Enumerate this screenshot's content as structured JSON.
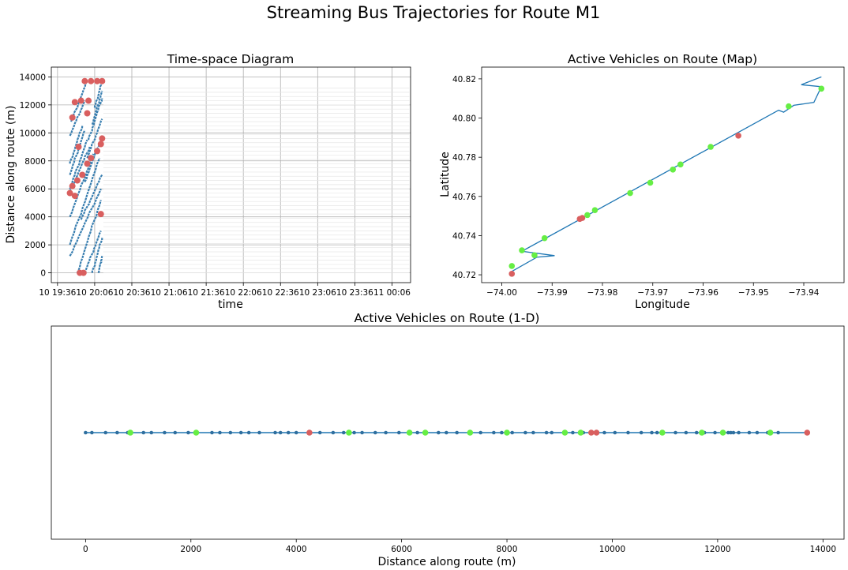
{
  "figure": {
    "title": "Streaming Bus Trajectories for Route M1"
  },
  "chart_data": [
    {
      "type": "line",
      "title": "Time-space Diagram",
      "xlabel": "time",
      "ylabel": "Distance along route (m)",
      "x_tick_labels": [
        "10 19:36",
        "10 20:06",
        "10 20:36",
        "10 21:06",
        "10 21:36",
        "10 22:06",
        "10 22:36",
        "10 23:06",
        "10 23:36",
        "11 00:06"
      ],
      "y_ticks": [
        0,
        2000,
        4000,
        6000,
        8000,
        10000,
        12000,
        14000
      ],
      "ylim": [
        -700,
        14700
      ],
      "grid": true,
      "series_colors": {
        "trajectory": "#3a7fb0",
        "bunched": "#d95f5f",
        "stop_lines": "#e6e6e6"
      },
      "trajectories": [
        {
          "x": [
            "19:46",
            "20:00"
          ],
          "y": [
            6000,
            9500
          ]
        },
        {
          "x": [
            "19:46",
            "20:02"
          ],
          "y": [
            5800,
            9000
          ]
        },
        {
          "x": [
            "19:46",
            "20:05"
          ],
          "y": [
            4000,
            8500
          ]
        },
        {
          "x": [
            "19:46",
            "20:10"
          ],
          "y": [
            2000,
            8200
          ]
        },
        {
          "x": [
            "19:46",
            "20:11"
          ],
          "y": [
            1200,
            6000
          ]
        },
        {
          "x": [
            "19:46",
            "19:58"
          ],
          "y": [
            7000,
            10200
          ]
        },
        {
          "x": [
            "19:46",
            "19:56"
          ],
          "y": [
            7800,
            10500
          ]
        },
        {
          "x": [
            "19:46",
            "19:58"
          ],
          "y": [
            9800,
            12300
          ]
        },
        {
          "x": [
            "19:47",
            "20:00"
          ],
          "y": [
            10800,
            13700
          ]
        },
        {
          "x": [
            "19:52",
            "20:11"
          ],
          "y": [
            0,
            5200
          ]
        },
        {
          "x": [
            "19:58",
            "20:11"
          ],
          "y": [
            0,
            3000
          ]
        },
        {
          "x": [
            "20:04",
            "20:12"
          ],
          "y": [
            0,
            2500
          ]
        },
        {
          "x": [
            "20:09",
            "20:12"
          ],
          "y": [
            0,
            1200
          ]
        },
        {
          "x": [
            "19:55",
            "20:12"
          ],
          "y": [
            3800,
            7000
          ]
        },
        {
          "x": [
            "19:58",
            "20:12"
          ],
          "y": [
            6500,
            9800
          ]
        },
        {
          "x": [
            "20:00",
            "20:12"
          ],
          "y": [
            8200,
            11000
          ]
        },
        {
          "x": [
            "20:01",
            "20:12"
          ],
          "y": [
            9500,
            12500
          ]
        },
        {
          "x": [
            "20:04",
            "20:12"
          ],
          "y": [
            10600,
            13000
          ]
        },
        {
          "x": [
            "20:06",
            "20:12"
          ],
          "y": [
            11800,
            13700
          ]
        }
      ],
      "bunched_points": [
        {
          "x": "19:46",
          "y": 5700
        },
        {
          "x": "19:50",
          "y": 5500
        },
        {
          "x": "19:48",
          "y": 6200
        },
        {
          "x": "19:52",
          "y": 6600
        },
        {
          "x": "19:56",
          "y": 7000
        },
        {
          "x": "20:00",
          "y": 7800
        },
        {
          "x": "20:03",
          "y": 8200
        },
        {
          "x": "20:08",
          "y": 8700
        },
        {
          "x": "20:11",
          "y": 9200
        },
        {
          "x": "20:12",
          "y": 9600
        },
        {
          "x": "20:11",
          "y": 4200
        },
        {
          "x": "19:54",
          "y": 0
        },
        {
          "x": "19:57",
          "y": 0
        },
        {
          "x": "19:53",
          "y": 9000
        },
        {
          "x": "20:00",
          "y": 11400
        },
        {
          "x": "19:48",
          "y": 11100
        },
        {
          "x": "19:50",
          "y": 12200
        },
        {
          "x": "19:55",
          "y": 12300
        },
        {
          "x": "20:01",
          "y": 12300
        },
        {
          "x": "19:58",
          "y": 13700
        },
        {
          "x": "20:03",
          "y": 13700
        },
        {
          "x": "20:08",
          "y": 13700
        },
        {
          "x": "20:12",
          "y": 13700
        }
      ]
    },
    {
      "type": "scatter",
      "title": "Active Vehicles on Route (Map)",
      "xlabel": "Longitude",
      "ylabel": "Latitude",
      "x_ticks": [
        -74.0,
        -73.99,
        -73.98,
        -73.97,
        -73.96,
        -73.95,
        -73.94
      ],
      "y_ticks": [
        40.72,
        40.74,
        40.76,
        40.78,
        40.8,
        40.82
      ],
      "xlim": [
        -74.004,
        -73.932
      ],
      "ylim": [
        40.716,
        40.826
      ],
      "route_line": {
        "color": "#1f77b4",
        "lon": [
          -73.9985,
          -73.993,
          -73.9895,
          -73.996,
          -73.945,
          -73.944,
          -73.942,
          -73.938,
          -73.9365,
          -73.9405,
          -73.9365
        ],
        "lat": [
          40.721,
          40.729,
          40.7298,
          40.732,
          40.804,
          40.803,
          40.8065,
          40.808,
          40.816,
          40.817,
          40.821
        ]
      },
      "on_time_color": "#66ee44",
      "bunched_color": "#d95f5f",
      "on_time": [
        {
          "lon": -73.998,
          "lat": 40.7245
        },
        {
          "lon": -73.996,
          "lat": 40.7325
        },
        {
          "lon": -73.9935,
          "lat": 40.73
        },
        {
          "lon": -73.9915,
          "lat": 40.7387
        },
        {
          "lon": -73.983,
          "lat": 40.7505
        },
        {
          "lon": -73.9815,
          "lat": 40.753
        },
        {
          "lon": -73.9745,
          "lat": 40.7617
        },
        {
          "lon": -73.9705,
          "lat": 40.767
        },
        {
          "lon": -73.966,
          "lat": 40.7737
        },
        {
          "lon": -73.9645,
          "lat": 40.7763
        },
        {
          "lon": -73.9585,
          "lat": 40.7853
        },
        {
          "lon": -73.943,
          "lat": 40.806
        },
        {
          "lon": -73.9365,
          "lat": 40.815
        }
      ],
      "bunched": [
        {
          "lon": -73.998,
          "lat": 40.7205
        },
        {
          "lon": -73.9845,
          "lat": 40.7485
        },
        {
          "lon": -73.984,
          "lat": 40.749
        },
        {
          "lon": -73.953,
          "lat": 40.791
        }
      ]
    },
    {
      "type": "scatter",
      "title": "Active Vehicles on Route (1-D)",
      "xlabel": "Distance along route (m)",
      "x_ticks": [
        0,
        2000,
        4000,
        6000,
        8000,
        10000,
        12000,
        14000
      ],
      "xlim": [
        -650,
        14400
      ],
      "line_color": "#1f77b4",
      "stop_positions": [
        0,
        120,
        380,
        600,
        800,
        1100,
        1250,
        1500,
        1700,
        1950,
        2100,
        2400,
        2550,
        2750,
        2950,
        3100,
        3300,
        3600,
        3700,
        3850,
        4000,
        4250,
        4450,
        4700,
        4900,
        5100,
        5250,
        5500,
        5700,
        5950,
        6150,
        6300,
        6450,
        6700,
        6850,
        7050,
        7300,
        7500,
        7750,
        7900,
        8100,
        8350,
        8500,
        8750,
        8850,
        9100,
        9250,
        9450,
        9600,
        9700,
        9850,
        10050,
        10300,
        10550,
        10750,
        10850,
        10950,
        11200,
        11400,
        11600,
        11750,
        11950,
        12100,
        12200,
        12250,
        12300,
        12400,
        12600,
        12750,
        12950,
        13150,
        13700
      ],
      "on_time": [
        850,
        2100,
        5000,
        6150,
        6450,
        7300,
        8000,
        9100,
        9400,
        10950,
        11700,
        12100,
        13000
      ],
      "bunched": [
        4250,
        9600,
        9700,
        13700
      ]
    }
  ]
}
